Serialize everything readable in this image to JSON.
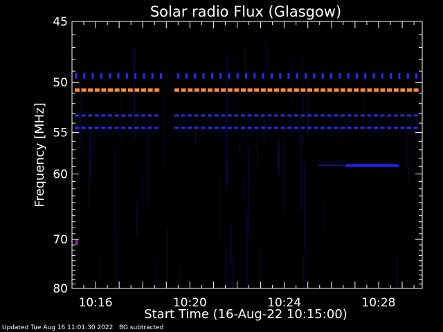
{
  "chart_data": {
    "type": "heatmap",
    "title": "Solar radio Flux (Glasgow)",
    "xlabel": "Start Time (16-Aug-22 10:15:00)",
    "ylabel": "Frequency [MHz]",
    "x_ticks": [
      "10:16",
      "10:20",
      "10:24",
      "10:28"
    ],
    "x_tick_minutes": [
      16,
      20,
      24,
      28
    ],
    "xlim_minutes": [
      15.0,
      29.85
    ],
    "y_ticks": [
      45,
      50,
      55,
      60,
      70,
      80
    ],
    "ylim": [
      45,
      80
    ],
    "y_scale": "reciprocal",
    "background_color": "#000000",
    "axis_color": "#ffffff",
    "bands": [
      {
        "freq": 49.4,
        "color": "#2a2aff",
        "style": "ticks"
      },
      {
        "freq": 50.7,
        "color": "#ff8a3c",
        "style": "dashed"
      },
      {
        "freq": 53.2,
        "color": "#2b2bd8",
        "style": "dashed"
      },
      {
        "freq": 54.5,
        "color": "#2a2aff",
        "style": "dashed"
      },
      {
        "freq": 58.9,
        "color": "#2222ee",
        "style": "partial",
        "x_start_min": 26.6,
        "x_end_min": 28.85
      }
    ],
    "band_gap_minutes": [
      18.75,
      19.15
    ],
    "features": [
      {
        "freq": 70.5,
        "x_min": 15.2,
        "color": "#8a22aa"
      }
    ]
  },
  "footer": {
    "updated": "Updated Tue Aug 16 11:01:30 2022",
    "note": "BG subtracted"
  }
}
